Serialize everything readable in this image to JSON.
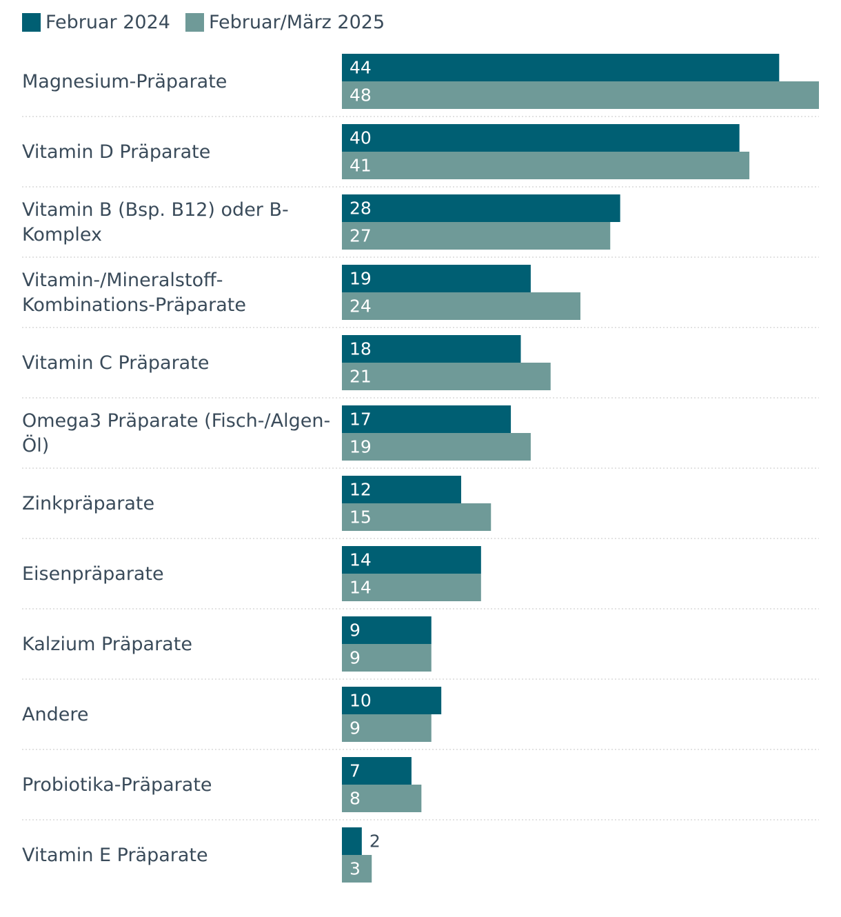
{
  "legend": {
    "series1_label": "Februar 2024",
    "series2_label": "Februar/März 2025"
  },
  "colors": {
    "series1": "#005f73",
    "series2": "#6f9a98",
    "text": "#3a4b5a",
    "label_on_bar": "#ffffff",
    "separator": "#d9d9d9"
  },
  "chart_data": {
    "type": "bar",
    "orientation": "horizontal",
    "categories": [
      [
        "Magnesium-Präparate"
      ],
      [
        "Vitamin D Präparate"
      ],
      [
        "Vitamin B (Bsp. B12) oder B-",
        "Komplex"
      ],
      [
        "Vitamin-/Mineralstoff-",
        "Kombinations-Präparate"
      ],
      [
        "Vitamin C Präparate"
      ],
      [
        "Omega3 Präparate (Fisch-/Algen-",
        "Öl)"
      ],
      [
        "Zinkpräparate"
      ],
      [
        "Eisenpräparate"
      ],
      [
        "Kalzium Präparate"
      ],
      [
        "Andere"
      ],
      [
        "Probiotika-Präparate"
      ],
      [
        "Vitamin E Präparate"
      ]
    ],
    "series": [
      {
        "name": "Februar 2024",
        "values": [
          44,
          40,
          28,
          19,
          18,
          17,
          12,
          14,
          9,
          10,
          7,
          2
        ]
      },
      {
        "name": "Februar/März 2025",
        "values": [
          48,
          41,
          27,
          24,
          21,
          19,
          15,
          14,
          9,
          9,
          8,
          3
        ]
      }
    ],
    "xlim": [
      0,
      48
    ],
    "title": "",
    "xlabel": "",
    "ylabel": "",
    "grid": false,
    "legend_position": "top-left"
  }
}
